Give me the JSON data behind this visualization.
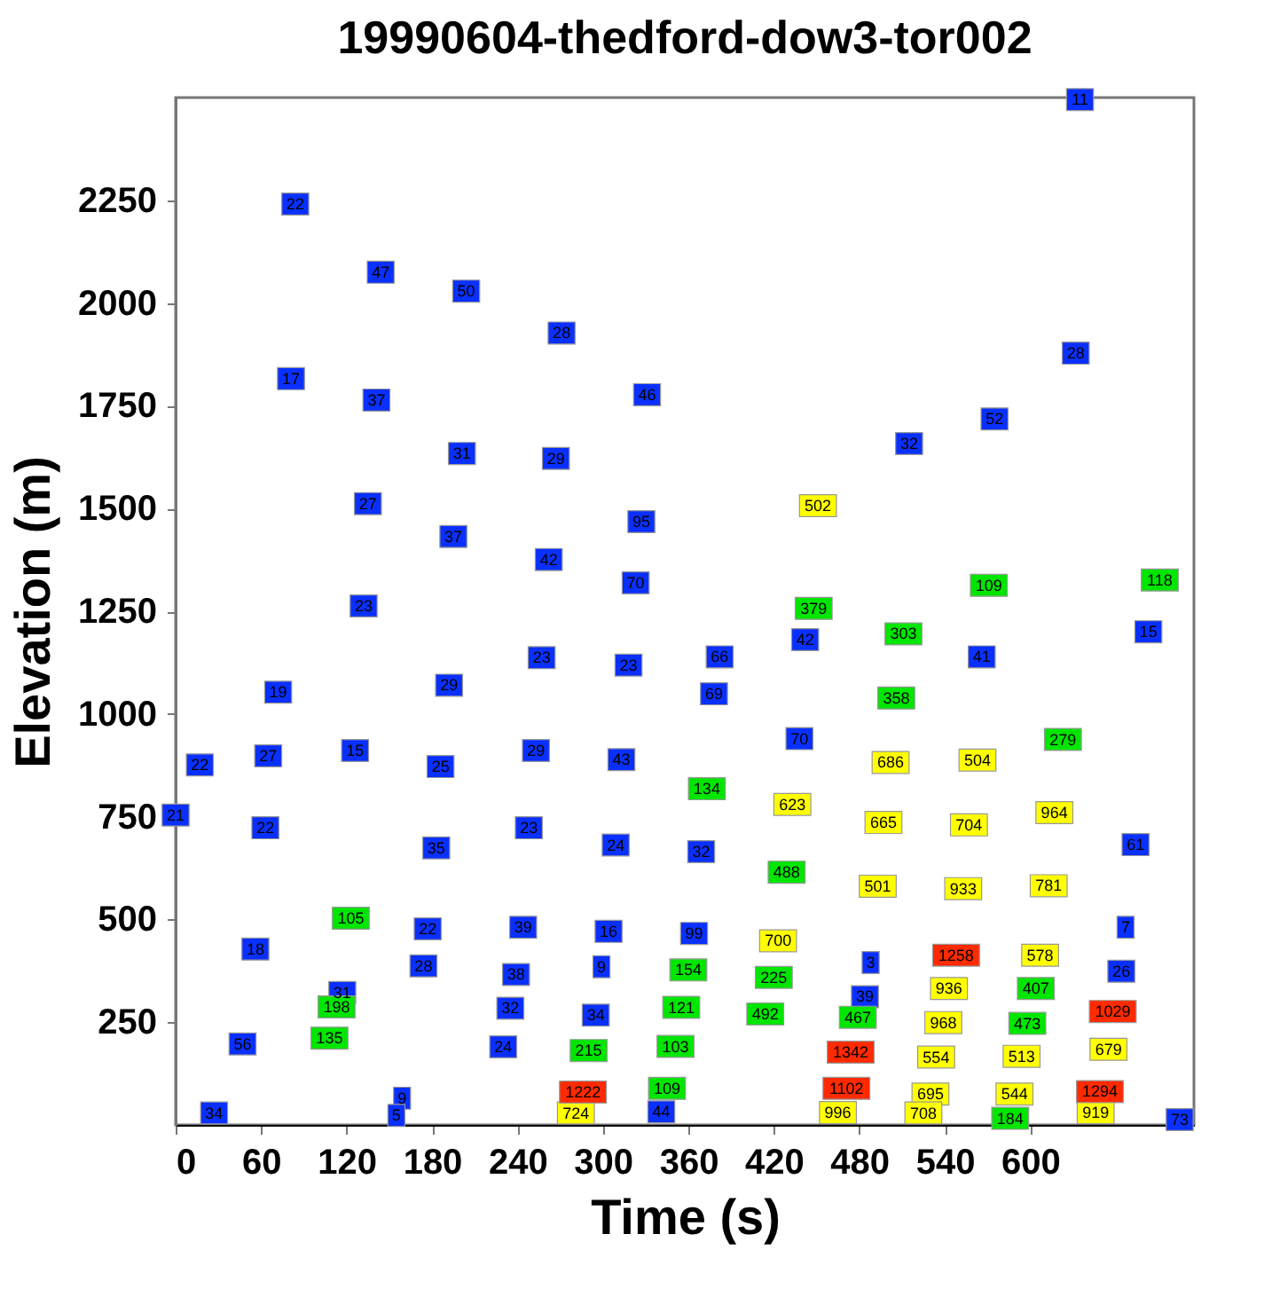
{
  "chart_data": {
    "type": "scatter",
    "title": "19990604-thedford-dow3-tor002",
    "xlabel": "Time (s)",
    "ylabel": "Elevation (m)",
    "xlim": [
      0,
      715
    ],
    "ylim": [
      0,
      2500
    ],
    "xticks": [
      0,
      60,
      120,
      180,
      240,
      300,
      360,
      420,
      480,
      540,
      600
    ],
    "yticks": [
      250,
      500,
      750,
      1000,
      1250,
      1500,
      1750,
      2000,
      2250
    ],
    "grid": false,
    "marker": "square",
    "series": [
      {
        "color": "#0a30ff",
        "x": [
          84,
          144,
          204,
          81,
          141,
          201,
          135,
          195,
          132,
          271,
          331,
          267,
          327,
          262,
          323,
          635,
          632,
          575,
          515,
          192,
          72,
          17,
          65,
          126,
          186,
          0,
          63,
          183,
          177,
          56,
          174,
          117,
          47,
          159,
          155,
          27,
          257,
          318,
          382,
          442,
          378,
          253,
          313,
          438,
          248,
          309,
          369,
          244,
          304,
          364,
          299,
          239,
          235,
          295,
          230,
          341,
          683,
          566,
          674,
          667,
          488,
          664,
          484,
          705
        ],
        "values": [
          2241,
          2075,
          2029,
          1816,
          1764,
          1634,
          1512,
          1432,
          1263,
          1927,
          1777,
          1622,
          1468,
          1376,
          1319,
          2495,
          1878,
          1718,
          1658,
          1070,
          1053,
          876,
          898,
          911,
          872,
          754,
          723,
          674,
          477,
          428,
          387,
          322,
          197,
          65,
          23,
          29,
          1137,
          1119,
          1139,
          1181,
          1049,
          911,
          889,
          940,
          723,
          681,
          665,
          481,
          471,
          466,
          385,
          366,
          284,
          267,
          190,
          32,
          1200,
          1139,
          682,
          481,
          395,
          374,
          312,
          13
        ]
      },
      {
        "color": "#00e600",
        "x": [
          448,
          571,
          691,
          123,
          113,
          108,
          373,
          429,
          360,
          420,
          355,
          414,
          290,
          351,
          345,
          511,
          506,
          623,
          604,
          479,
          598,
          586
        ],
        "values": [
          1257,
          1313,
          1326,
          503,
          287,
          211,
          818,
          615,
          377,
          359,
          286,
          270,
          181,
          191,
          89,
          1195,
          1039,
          938,
          332,
          262,
          247,
          16
        ]
      },
      {
        "color": "#ffff00",
        "x": [
          451,
          433,
          423,
          281,
          502,
          563,
          497,
          557,
          617,
          493,
          553,
          613,
          607,
          543,
          539,
          534,
          594,
          655,
          530,
          589,
          465,
          525,
          646
        ],
        "values": [
          1507,
          780,
          448,
          29,
          882,
          888,
          736,
          730,
          760,
          581,
          575,
          582,
          413,
          332,
          249,
          165,
          167,
          184,
          75,
          75,
          30,
          29,
          30
        ]
      },
      {
        "color": "#ff2a00",
        "x": [
          286,
          548,
          658,
          474,
          471,
          649
        ],
        "values": [
          80,
          413,
          276,
          177,
          89,
          81
        ]
      }
    ],
    "annotations": [
      {
        "text": "22",
        "x": 84,
        "y": 2241
      },
      {
        "text": "47",
        "x": 144,
        "y": 2075
      },
      {
        "text": "50",
        "x": 204,
        "y": 2029
      },
      {
        "text": "17",
        "x": 81,
        "y": 1816
      },
      {
        "text": "37",
        "x": 141,
        "y": 1764
      },
      {
        "text": "31",
        "x": 201,
        "y": 1634
      },
      {
        "text": "27",
        "x": 135,
        "y": 1512
      },
      {
        "text": "37",
        "x": 195,
        "y": 1432
      },
      {
        "text": "23",
        "x": 132,
        "y": 1263
      },
      {
        "text": "28",
        "x": 271,
        "y": 1927
      },
      {
        "text": "46",
        "x": 331,
        "y": 1777
      },
      {
        "text": "29",
        "x": 267,
        "y": 1622
      },
      {
        "text": "95",
        "x": 327,
        "y": 1468
      },
      {
        "text": "42",
        "x": 262,
        "y": 1376
      },
      {
        "text": "70",
        "x": 323,
        "y": 1319
      },
      {
        "text": "11",
        "x": 635,
        "y": 2495
      },
      {
        "text": "28",
        "x": 632,
        "y": 1878
      },
      {
        "text": "52",
        "x": 575,
        "y": 1718
      },
      {
        "text": "32",
        "x": 515,
        "y": 1658
      },
      {
        "text": "29",
        "x": 192,
        "y": 1070
      },
      {
        "text": "19",
        "x": 72,
        "y": 1053
      },
      {
        "text": "22",
        "x": 17,
        "y": 876
      },
      {
        "text": "27",
        "x": 65,
        "y": 898
      },
      {
        "text": "15",
        "x": 126,
        "y": 911
      },
      {
        "text": "25",
        "x": 186,
        "y": 872
      },
      {
        "text": "21",
        "x": 0,
        "y": 754
      },
      {
        "text": "22",
        "x": 63,
        "y": 723
      },
      {
        "text": "35",
        "x": 183,
        "y": 674
      },
      {
        "text": "22",
        "x": 177,
        "y": 477
      },
      {
        "text": "18",
        "x": 56,
        "y": 428
      },
      {
        "text": "28",
        "x": 174,
        "y": 387
      },
      {
        "text": "31",
        "x": 117,
        "y": 322
      },
      {
        "text": "56",
        "x": 47,
        "y": 197
      },
      {
        "text": "9",
        "x": 159,
        "y": 65
      },
      {
        "text": "5",
        "x": 155,
        "y": 23
      },
      {
        "text": "34",
        "x": 27,
        "y": 29
      },
      {
        "text": "23",
        "x": 257,
        "y": 1137
      },
      {
        "text": "23",
        "x": 318,
        "y": 1119
      },
      {
        "text": "66",
        "x": 382,
        "y": 1139
      },
      {
        "text": "42",
        "x": 442,
        "y": 1181
      },
      {
        "text": "69",
        "x": 378,
        "y": 1049
      },
      {
        "text": "29",
        "x": 253,
        "y": 911
      },
      {
        "text": "43",
        "x": 313,
        "y": 889
      },
      {
        "text": "70",
        "x": 438,
        "y": 940
      },
      {
        "text": "23",
        "x": 248,
        "y": 723
      },
      {
        "text": "24",
        "x": 309,
        "y": 681
      },
      {
        "text": "32",
        "x": 369,
        "y": 665
      },
      {
        "text": "39",
        "x": 244,
        "y": 481
      },
      {
        "text": "16",
        "x": 304,
        "y": 471
      },
      {
        "text": "99",
        "x": 364,
        "y": 466
      },
      {
        "text": "9",
        "x": 299,
        "y": 385
      },
      {
        "text": "38",
        "x": 239,
        "y": 366
      },
      {
        "text": "32",
        "x": 235,
        "y": 284
      },
      {
        "text": "34",
        "x": 295,
        "y": 267
      },
      {
        "text": "24",
        "x": 230,
        "y": 190
      },
      {
        "text": "44",
        "x": 341,
        "y": 32
      },
      {
        "text": "15",
        "x": 683,
        "y": 1200
      },
      {
        "text": "41",
        "x": 566,
        "y": 1139
      },
      {
        "text": "61",
        "x": 674,
        "y": 682
      },
      {
        "text": "7",
        "x": 667,
        "y": 481
      },
      {
        "text": "3",
        "x": 488,
        "y": 395
      },
      {
        "text": "26",
        "x": 664,
        "y": 374
      },
      {
        "text": "39",
        "x": 484,
        "y": 312
      },
      {
        "text": "73",
        "x": 705,
        "y": 13
      },
      {
        "text": "379",
        "x": 448,
        "y": 1257
      },
      {
        "text": "109",
        "x": 571,
        "y": 1313
      },
      {
        "text": "118",
        "x": 691,
        "y": 1326
      },
      {
        "text": "105",
        "x": 123,
        "y": 503
      },
      {
        "text": "198",
        "x": 113,
        "y": 287
      },
      {
        "text": "135",
        "x": 108,
        "y": 211
      },
      {
        "text": "134",
        "x": 373,
        "y": 818
      },
      {
        "text": "488",
        "x": 429,
        "y": 615
      },
      {
        "text": "154",
        "x": 360,
        "y": 377
      },
      {
        "text": "225",
        "x": 420,
        "y": 359
      },
      {
        "text": "121",
        "x": 355,
        "y": 286
      },
      {
        "text": "492",
        "x": 414,
        "y": 270
      },
      {
        "text": "215",
        "x": 290,
        "y": 181
      },
      {
        "text": "103",
        "x": 351,
        "y": 191
      },
      {
        "text": "109",
        "x": 345,
        "y": 89
      },
      {
        "text": "303",
        "x": 511,
        "y": 1195
      },
      {
        "text": "358",
        "x": 506,
        "y": 1039
      },
      {
        "text": "279",
        "x": 623,
        "y": 938
      },
      {
        "text": "407",
        "x": 604,
        "y": 332
      },
      {
        "text": "467",
        "x": 479,
        "y": 262
      },
      {
        "text": "473",
        "x": 598,
        "y": 247
      },
      {
        "text": "184",
        "x": 586,
        "y": 16
      },
      {
        "text": "502",
        "x": 451,
        "y": 1507
      },
      {
        "text": "623",
        "x": 433,
        "y": 780
      },
      {
        "text": "700",
        "x": 423,
        "y": 448
      },
      {
        "text": "724",
        "x": 281,
        "y": 29
      },
      {
        "text": "686",
        "x": 502,
        "y": 882
      },
      {
        "text": "504",
        "x": 563,
        "y": 888
      },
      {
        "text": "665",
        "x": 497,
        "y": 736
      },
      {
        "text": "704",
        "x": 557,
        "y": 730
      },
      {
        "text": "964",
        "x": 617,
        "y": 760
      },
      {
        "text": "501",
        "x": 493,
        "y": 581
      },
      {
        "text": "933",
        "x": 553,
        "y": 575
      },
      {
        "text": "781",
        "x": 613,
        "y": 582
      },
      {
        "text": "578",
        "x": 607,
        "y": 413
      },
      {
        "text": "936",
        "x": 543,
        "y": 332
      },
      {
        "text": "968",
        "x": 539,
        "y": 249
      },
      {
        "text": "554",
        "x": 534,
        "y": 165
      },
      {
        "text": "513",
        "x": 594,
        "y": 167
      },
      {
        "text": "679",
        "x": 655,
        "y": 184
      },
      {
        "text": "695",
        "x": 530,
        "y": 75
      },
      {
        "text": "544",
        "x": 589,
        "y": 75
      },
      {
        "text": "996",
        "x": 465,
        "y": 30
      },
      {
        "text": "708",
        "x": 525,
        "y": 29
      },
      {
        "text": "919",
        "x": 646,
        "y": 30
      },
      {
        "text": "1222",
        "x": 286,
        "y": 80
      },
      {
        "text": "1258",
        "x": 548,
        "y": 413
      },
      {
        "text": "1029",
        "x": 658,
        "y": 276
      },
      {
        "text": "1342",
        "x": 474,
        "y": 177
      },
      {
        "text": "1102",
        "x": 471,
        "y": 89
      },
      {
        "text": "1294",
        "x": 649,
        "y": 81
      }
    ]
  }
}
